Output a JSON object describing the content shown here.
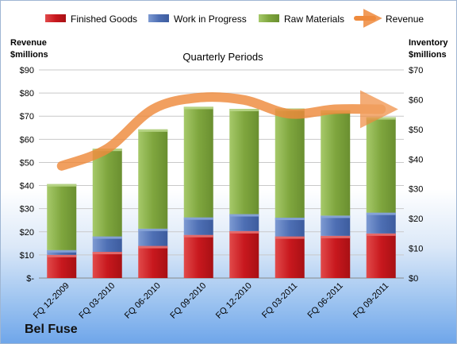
{
  "chart_data": {
    "type": "bar",
    "stacked": true,
    "title": "Quarterly Periods",
    "brand": "Bel Fuse",
    "categories": [
      "FQ 12-2009",
      "FQ 03-2010",
      "FQ 06-2010",
      "FQ 09-2010",
      "FQ 12-2010",
      "FQ 03-2011",
      "FQ 06-2011",
      "FQ 09-2011"
    ],
    "y_left": {
      "label_line1": "Revenue",
      "label_line2": "$millions",
      "ticks": [
        "$-",
        "$10",
        "$20",
        "$30",
        "$40",
        "$50",
        "$60",
        "$70",
        "$80",
        "$90"
      ],
      "ylim": [
        0,
        90
      ]
    },
    "y_right": {
      "label_line1": "Inventory",
      "label_line2": "$millions",
      "ticks": [
        "$0",
        "$10",
        "$20",
        "$30",
        "$40",
        "$50",
        "$60",
        "$70"
      ],
      "ylim": [
        0,
        70
      ]
    },
    "grid": true,
    "legend_position": "top",
    "series": [
      {
        "name": "Finished Goods",
        "axis": "right",
        "color": "#d42a2a",
        "values": [
          7.8,
          8.8,
          10.8,
          14.5,
          15.8,
          14.0,
          14.2,
          15.0
        ]
      },
      {
        "name": "Work in Progress",
        "axis": "right",
        "color": "#5a7fc0",
        "values": [
          1.6,
          5.2,
          5.8,
          5.9,
          5.7,
          6.3,
          6.8,
          7.0
        ]
      },
      {
        "name": "Raw Materials",
        "axis": "right",
        "color": "#8ab44a",
        "values": [
          22.2,
          29.5,
          33.4,
          37.2,
          35.4,
          36.7,
          35.4,
          32.1
        ]
      },
      {
        "name": "Revenue",
        "axis": "left",
        "type": "line",
        "color": "#ee8a3c",
        "values": [
          48.5,
          56.0,
          73.0,
          78.0,
          77.0,
          71.0,
          73.0,
          73.0
        ]
      }
    ]
  }
}
